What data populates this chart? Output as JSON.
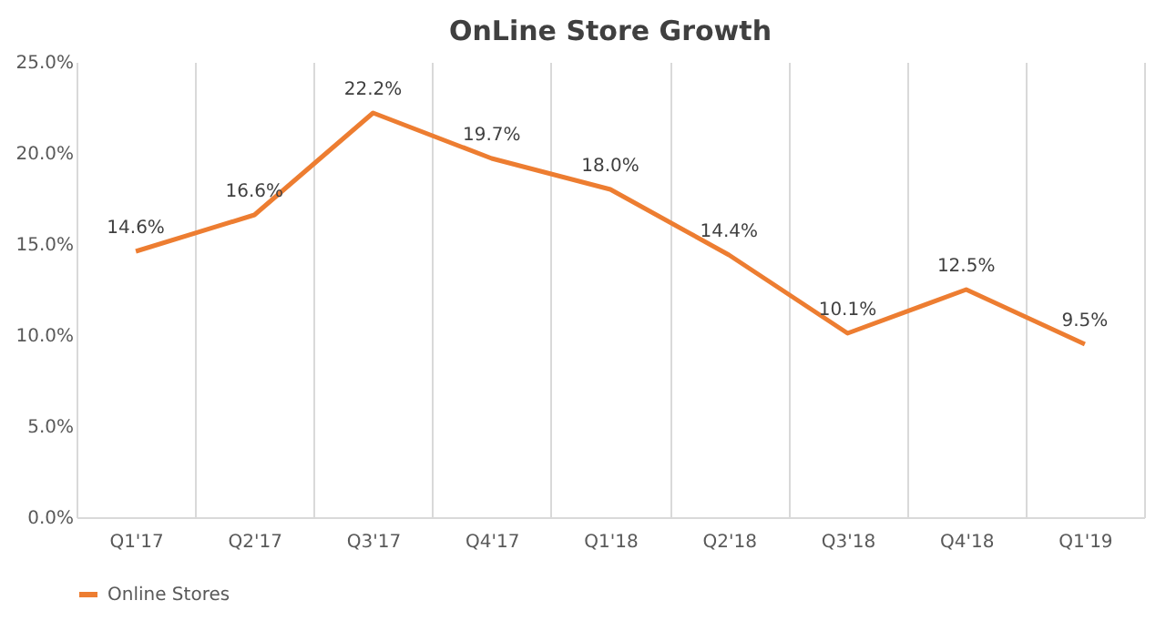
{
  "chart_data": {
    "type": "line",
    "title": "OnLine Store Growth",
    "categories": [
      "Q1'17",
      "Q2'17",
      "Q3'17",
      "Q4'17",
      "Q1'18",
      "Q2'18",
      "Q3'18",
      "Q4'18",
      "Q1'19"
    ],
    "series": [
      {
        "name": "Online Stores",
        "color": "#ed7d31",
        "values": [
          14.6,
          16.6,
          22.2,
          19.7,
          18.0,
          14.4,
          10.1,
          12.5,
          9.5
        ],
        "value_labels": [
          "14.6%",
          "16.6%",
          "22.2%",
          "19.7%",
          "18.0%",
          "14.4%",
          "10.1%",
          "12.5%",
          "9.5%"
        ]
      }
    ],
    "ylim": [
      0,
      25
    ],
    "yticks": [
      {
        "value": 0,
        "label": "0.0%"
      },
      {
        "value": 5,
        "label": "5.0%"
      },
      {
        "value": 10,
        "label": "10.0%"
      },
      {
        "value": 15,
        "label": "15.0%"
      },
      {
        "value": 20,
        "label": "20.0%"
      },
      {
        "value": 25,
        "label": "25.0%"
      }
    ],
    "grid": "x",
    "legend": "bottom",
    "marker": "none",
    "line_style": "solid"
  }
}
